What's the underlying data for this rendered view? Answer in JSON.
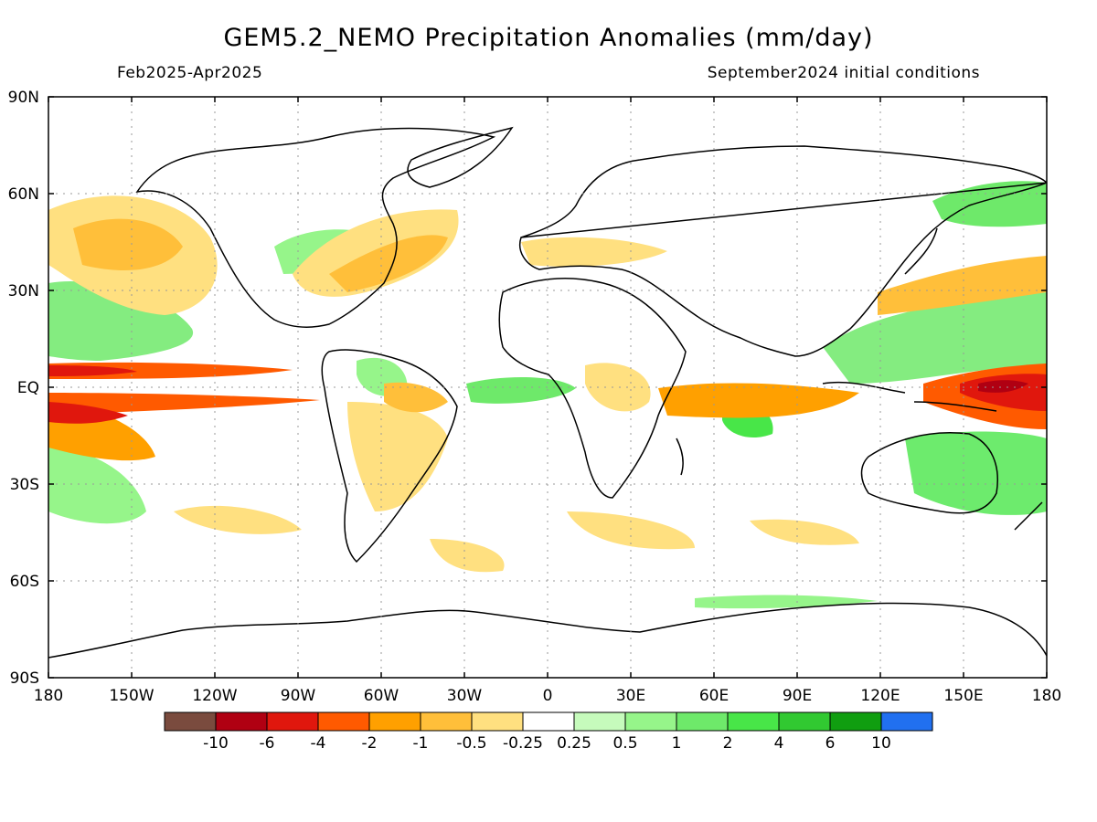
{
  "title": "GEM5.2_NEMO Precipitation Anomalies (mm/day)",
  "period": "Feb2025-Apr2025",
  "init": "September2024 initial conditions",
  "lat_labels": [
    "90N",
    "60N",
    "30N",
    "EQ",
    "30S",
    "60S",
    "90S"
  ],
  "lon_labels": [
    "180",
    "150W",
    "120W",
    "90W",
    "60W",
    "30W",
    "0",
    "30E",
    "60E",
    "90E",
    "120E",
    "150E",
    "180"
  ],
  "colorbar": {
    "colors": [
      "#7a4b3e",
      "#b00012",
      "#e0170d",
      "#ff5a00",
      "#ffa000",
      "#ffbf3a",
      "#ffe080",
      "#ffffff",
      "#c6fbbc",
      "#96f58a",
      "#6ee96a",
      "#48e648",
      "#31c931",
      "#109e10",
      "#2170f0"
    ],
    "labels": [
      "-10",
      "-6",
      "-4",
      "-2",
      "-1",
      "-0.5",
      "-0.25",
      "0.25",
      "0.5",
      "1",
      "2",
      "4",
      "6",
      "10"
    ]
  }
}
